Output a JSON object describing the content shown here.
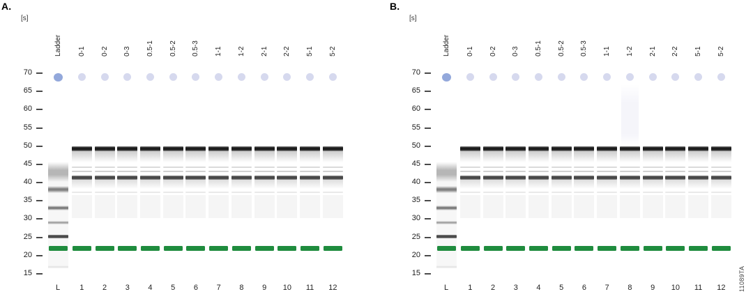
{
  "figure": {
    "watermark": "11089TA",
    "colors": {
      "lower_marker": "#1f8c3e",
      "axis_text": "#1b1b1b"
    },
    "axis": {
      "ticks": [
        "70",
        "65",
        "60",
        "55",
        "50",
        "45",
        "40",
        "35",
        "30",
        "25",
        "20",
        "15"
      ]
    },
    "upper_marker_v": 68.9,
    "lane_types": {
      "ladder": {
        "dot_color": "#93a8db",
        "bands": [
          {
            "kind": "column",
            "from": 45.6,
            "to": 16.6,
            "color": "#f7f7f7"
          },
          {
            "kind": "smear",
            "from": 45.3,
            "to": 40.2,
            "color": "#a6a6a6"
          },
          {
            "kind": "fuzzy",
            "v": 38.2,
            "h": 10,
            "color": "#757575"
          },
          {
            "kind": "fuzzy",
            "v": 33.0,
            "h": 7,
            "color": "#6b6b6b"
          },
          {
            "kind": "fuzzy",
            "v": 29.1,
            "h": 5,
            "color": "#979797"
          },
          {
            "kind": "band",
            "v": 25.3,
            "h": 5,
            "color": "#4a4a4a",
            "grad": true
          },
          {
            "kind": "green",
            "v": 22.0,
            "h": 7
          },
          {
            "kind": "fuzzy",
            "v": 17.0,
            "h": 4,
            "color": "#e3e3e3"
          }
        ]
      },
      "sample": {
        "dot_color": "#d6d9ee",
        "bands": [
          {
            "kind": "tail",
            "from": 49.0,
            "to": 45.6,
            "color": "#bdbdbd"
          },
          {
            "kind": "band",
            "v": 49.3,
            "h": 7,
            "color": "#1c1c1c",
            "grad": true
          },
          {
            "kind": "band",
            "v": 44.2,
            "h": 2,
            "color": "#dadada"
          },
          {
            "kind": "band",
            "v": 43.1,
            "h": 2,
            "color": "#d0d0d0"
          },
          {
            "kind": "band",
            "v": 41.4,
            "h": 6,
            "color": "#474747",
            "grad": true
          },
          {
            "kind": "tail",
            "from": 40.7,
            "to": 38.3,
            "color": "#d8d8d8"
          },
          {
            "kind": "band",
            "v": 37.3,
            "h": 2,
            "color": "#e9e9e9"
          },
          {
            "kind": "column",
            "from": 36.6,
            "to": 30.2,
            "color": "#f5f5f5"
          },
          {
            "kind": "green",
            "v": 22.0,
            "h": 7
          }
        ]
      }
    },
    "panels": [
      {
        "label": "A.",
        "unit_label": "[s]",
        "artifacts": [],
        "lanes": [
          {
            "type": "ladder",
            "top_label": "Ladder",
            "bottom_label": "L"
          },
          {
            "type": "sample",
            "top_label": "0-1",
            "bottom_label": "1"
          },
          {
            "type": "sample",
            "top_label": "0-2",
            "bottom_label": "2"
          },
          {
            "type": "sample",
            "top_label": "0-3",
            "bottom_label": "3"
          },
          {
            "type": "sample",
            "top_label": "0.5-1",
            "bottom_label": "4"
          },
          {
            "type": "sample",
            "top_label": "0.5-2",
            "bottom_label": "5"
          },
          {
            "type": "sample",
            "top_label": "0.5-3",
            "bottom_label": "6"
          },
          {
            "type": "sample",
            "top_label": "1-1",
            "bottom_label": "7"
          },
          {
            "type": "sample",
            "top_label": "1-2",
            "bottom_label": "8"
          },
          {
            "type": "sample",
            "top_label": "2-1",
            "bottom_label": "9"
          },
          {
            "type": "sample",
            "top_label": "2-2",
            "bottom_label": "10"
          },
          {
            "type": "sample",
            "top_label": "5-1",
            "bottom_label": "11"
          },
          {
            "type": "sample",
            "top_label": "5-2",
            "bottom_label": "12"
          }
        ]
      },
      {
        "label": "B.",
        "unit_label": "[s]",
        "artifacts": [
          {
            "lane_index": 8,
            "from": 67.0,
            "to": 50.0,
            "color": "#f4f4fa"
          }
        ],
        "lanes": [
          {
            "type": "ladder",
            "top_label": "Ladder",
            "bottom_label": "L"
          },
          {
            "type": "sample",
            "top_label": "0-1",
            "bottom_label": "1"
          },
          {
            "type": "sample",
            "top_label": "0-2",
            "bottom_label": "2"
          },
          {
            "type": "sample",
            "top_label": "0-3",
            "bottom_label": "3"
          },
          {
            "type": "sample",
            "top_label": "0.5-1",
            "bottom_label": "4"
          },
          {
            "type": "sample",
            "top_label": "0.5-2",
            "bottom_label": "5"
          },
          {
            "type": "sample",
            "top_label": "0.5-3",
            "bottom_label": "6"
          },
          {
            "type": "sample",
            "top_label": "1-1",
            "bottom_label": "7"
          },
          {
            "type": "sample",
            "top_label": "1-2",
            "bottom_label": "8"
          },
          {
            "type": "sample",
            "top_label": "2-1",
            "bottom_label": "9"
          },
          {
            "type": "sample",
            "top_label": "2-2",
            "bottom_label": "10"
          },
          {
            "type": "sample",
            "top_label": "5-1",
            "bottom_label": "11"
          },
          {
            "type": "sample",
            "top_label": "5-2",
            "bottom_label": "12"
          }
        ]
      }
    ]
  }
}
